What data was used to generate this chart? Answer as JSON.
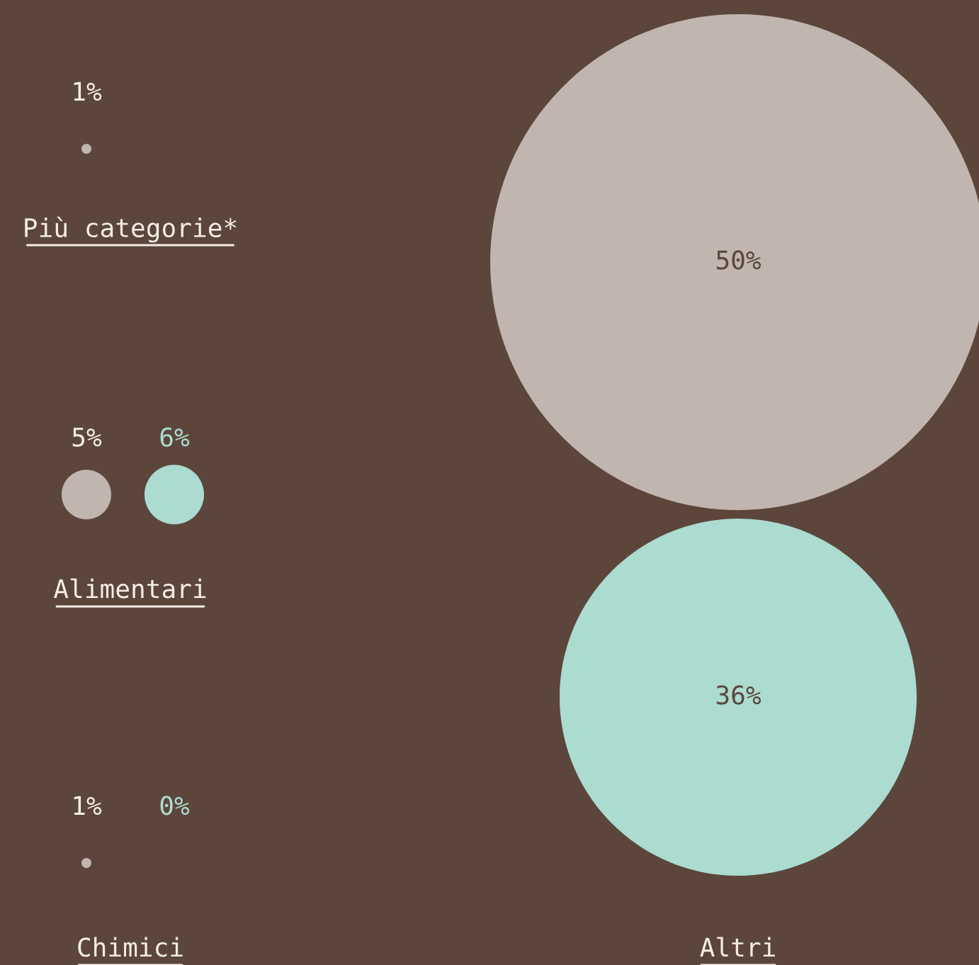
{
  "chart_data": {
    "type": "other",
    "categories": [
      "Più categorie*",
      "Alimentari",
      "Chimici",
      "Altri"
    ],
    "series": [
      {
        "color": "#c0b5af",
        "values": [
          1,
          5,
          1,
          50
        ],
        "value_labels": [
          "1%",
          "5%",
          "1%",
          "50%"
        ]
      },
      {
        "color": "#acdbd0",
        "values": [
          null,
          6,
          0,
          36
        ],
        "value_labels": [
          null,
          "6%",
          "0%",
          "36%"
        ]
      }
    ]
  }
}
